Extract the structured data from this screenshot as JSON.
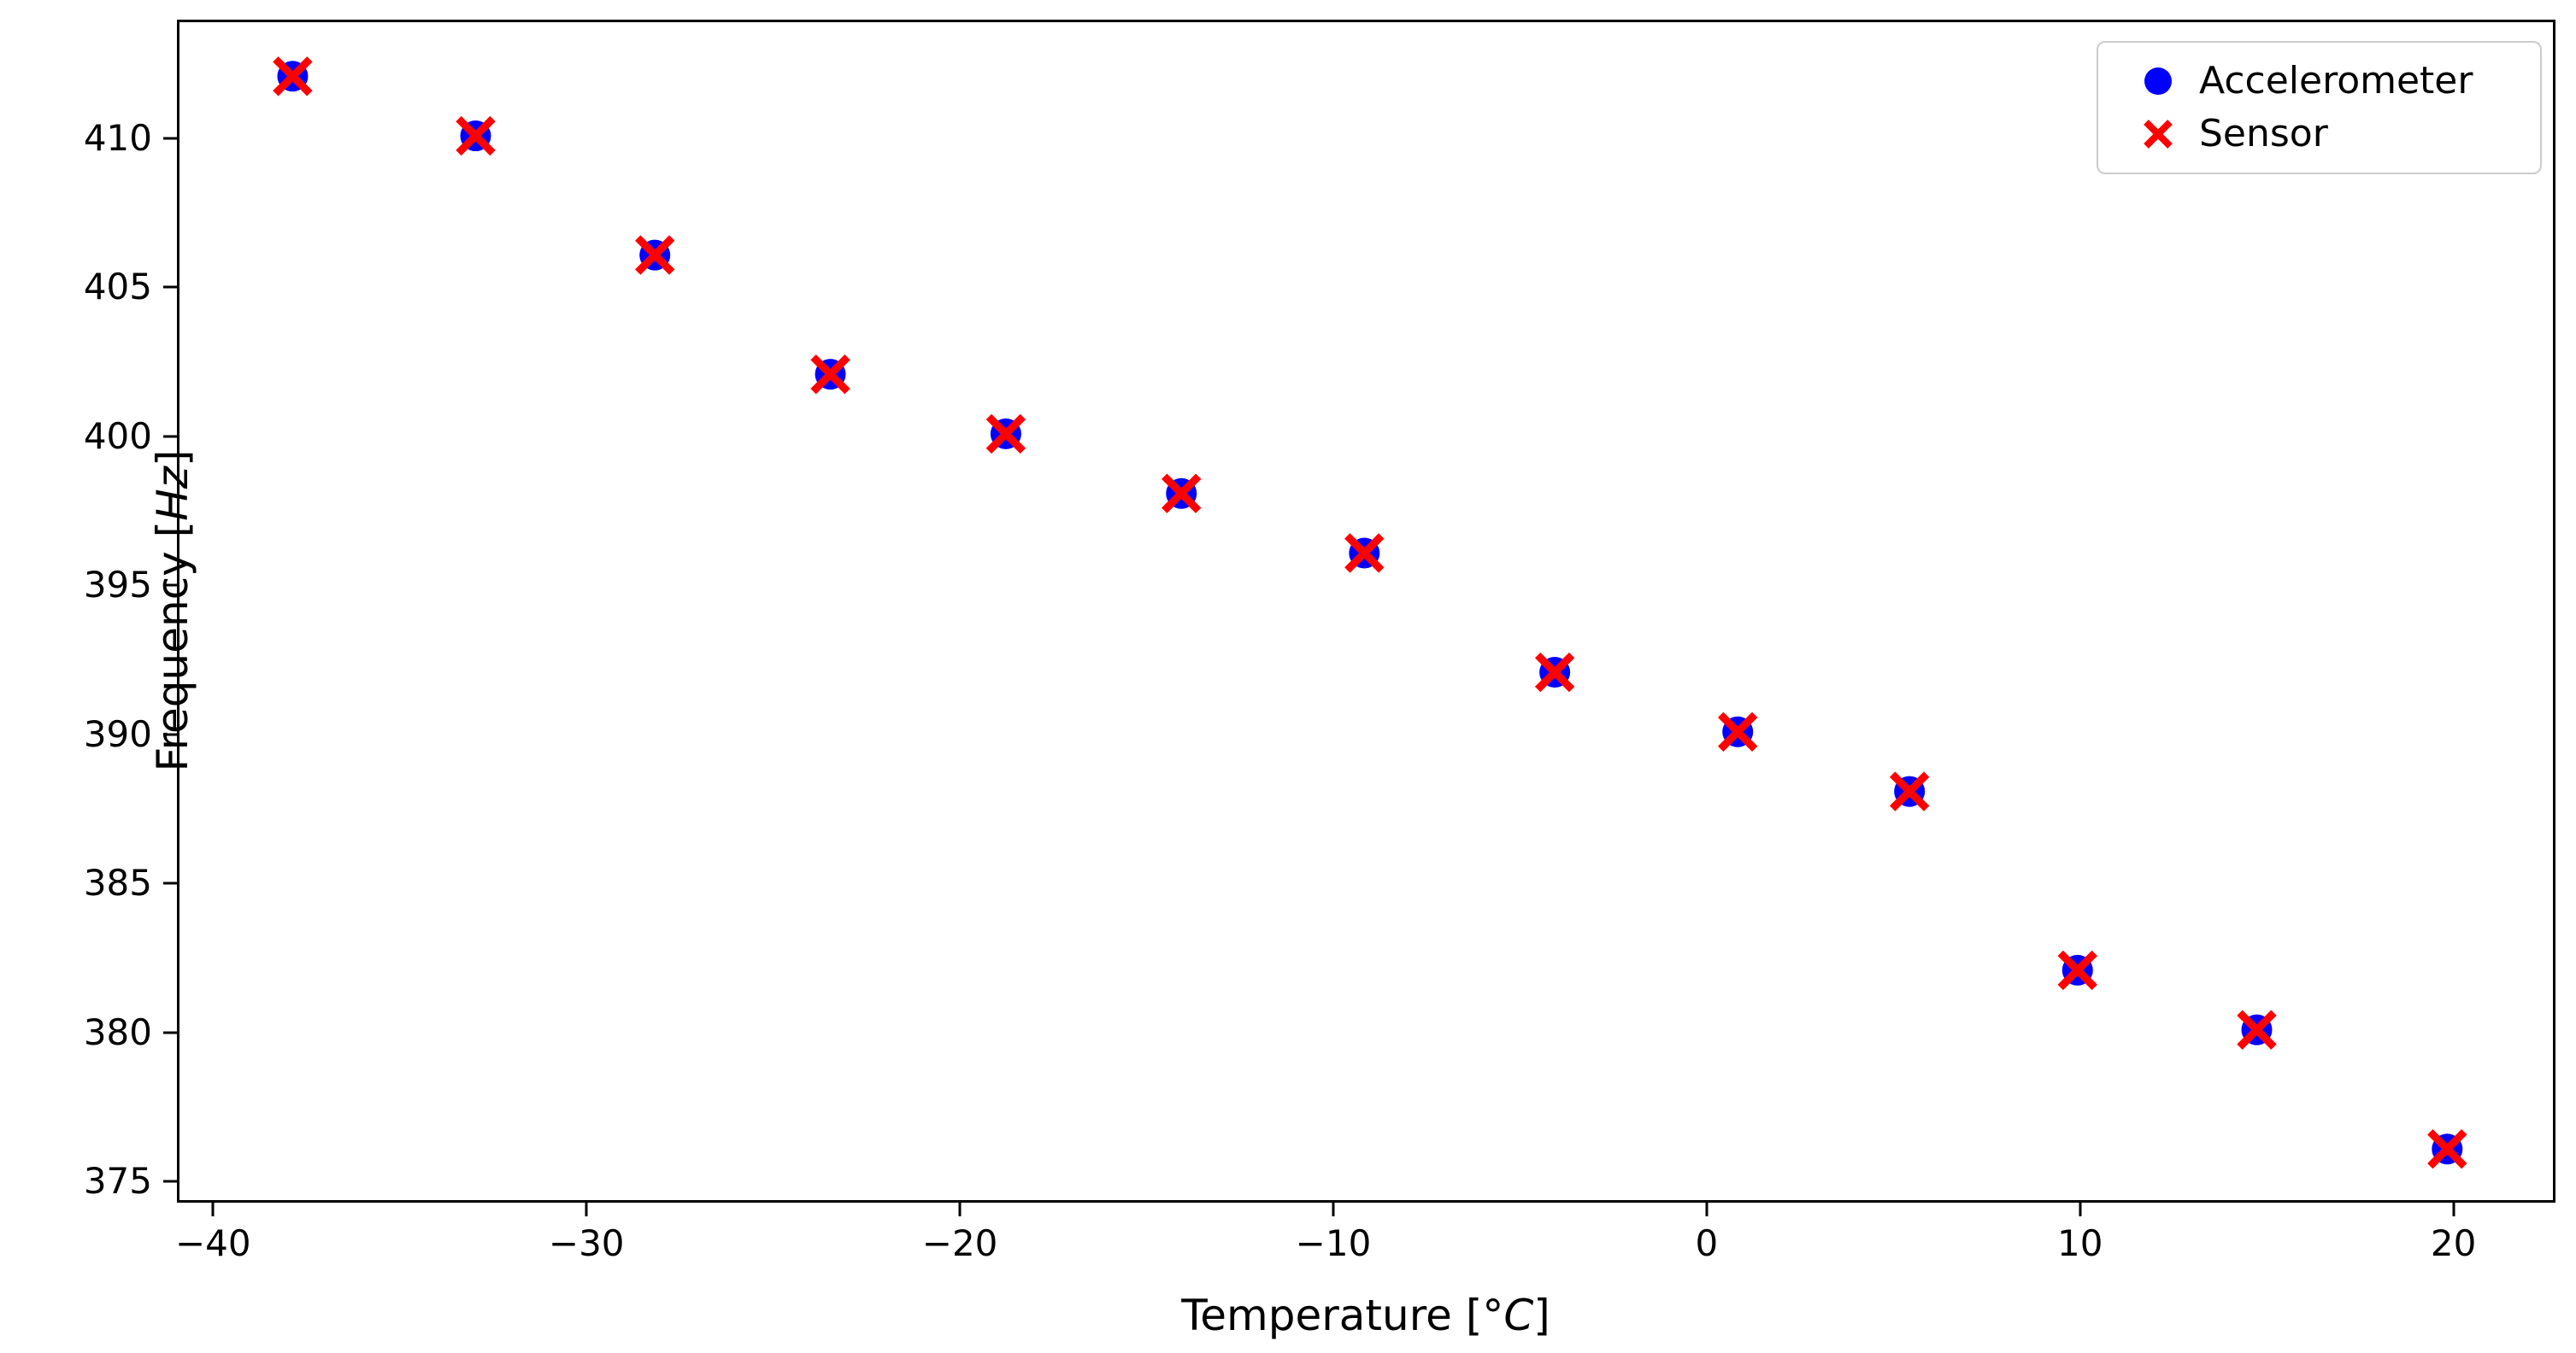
{
  "figure": {
    "background": "#ffffff",
    "frame_color": "#000000"
  },
  "chart_data": {
    "type": "scatter",
    "title": "",
    "xlabel": "Temperature [°C]",
    "ylabel": "Frequency [Hz]",
    "xlabel_parts": {
      "prefix": "Temperature [",
      "italic": "°C",
      "suffix": "]"
    },
    "ylabel_parts": {
      "prefix": "Frequency [",
      "italic": "Hz",
      "suffix": "]"
    },
    "xlim": [
      -40.9,
      22.8
    ],
    "ylim": [
      374.2,
      413.9
    ],
    "x_ticks": [
      -40,
      -30,
      -20,
      -10,
      0,
      10,
      20
    ],
    "y_ticks": [
      375,
      380,
      385,
      390,
      395,
      400,
      405,
      410
    ],
    "grid": false,
    "legend_position": "upper-right",
    "x": [
      -37.8,
      -32.9,
      -28.1,
      -23.4,
      -18.7,
      -14.0,
      -9.1,
      -4.0,
      0.9,
      5.5,
      10.0,
      14.8,
      19.9
    ],
    "series": [
      {
        "name": "Accelerometer",
        "marker": "circle",
        "color": "#0000ff",
        "values": [
          412,
          410,
          406,
          402,
          400,
          398,
          396,
          392,
          390,
          388,
          382,
          380,
          376
        ]
      },
      {
        "name": "Sensor",
        "marker": "x",
        "color": "#ff0000",
        "values": [
          412,
          410,
          406,
          402,
          400,
          398,
          396,
          392,
          390,
          388,
          382,
          380,
          376
        ]
      }
    ],
    "legend_border_color": "#cccccc",
    "legend_background": "#ffffff"
  }
}
